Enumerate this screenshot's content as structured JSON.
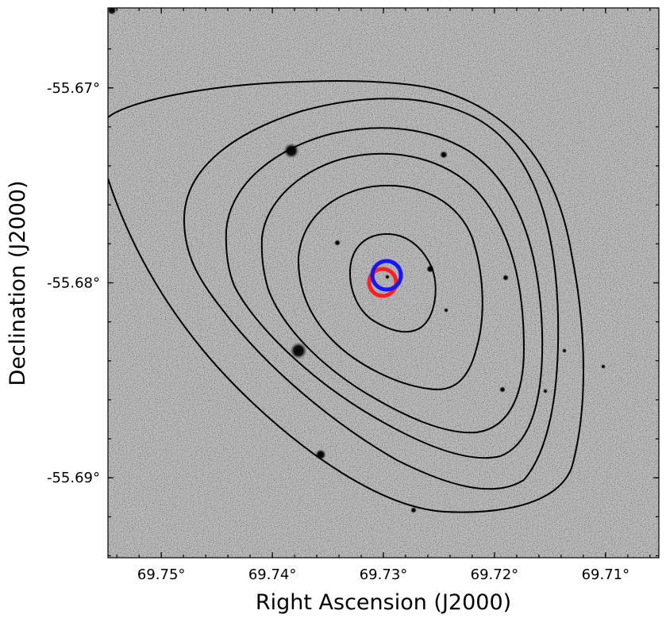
{
  "figure": {
    "xlabel": "Right Ascension (J2000)",
    "ylabel": "Declination (J2000)",
    "x_ticks": [
      {
        "value": 69.75,
        "label": "69.75°"
      },
      {
        "value": 69.74,
        "label": "69.74°"
      },
      {
        "value": 69.73,
        "label": "69.73°"
      },
      {
        "value": 69.72,
        "label": "69.72°"
      },
      {
        "value": 69.71,
        "label": "69.71°"
      }
    ],
    "y_ticks": [
      {
        "value": -55.69,
        "label": "-55.69°"
      },
      {
        "value": -55.68,
        "label": "-55.68°"
      },
      {
        "value": -55.67,
        "label": "-55.67°"
      }
    ],
    "x_range_deg": [
      69.7548,
      69.7052
    ],
    "y_range_deg": [
      -55.6941,
      -55.6659
    ],
    "x_reversed": true,
    "background": "grayscale noisy optical image with black contour overlay",
    "contour_color": "#000000",
    "markers": [
      {
        "name": "red-marker",
        "ra": 69.7324,
        "dec": -55.6807,
        "color": "#ff2020"
      },
      {
        "name": "blue-marker",
        "ra": 69.732,
        "dec": -55.6804,
        "color": "#1515ff"
      }
    ]
  }
}
